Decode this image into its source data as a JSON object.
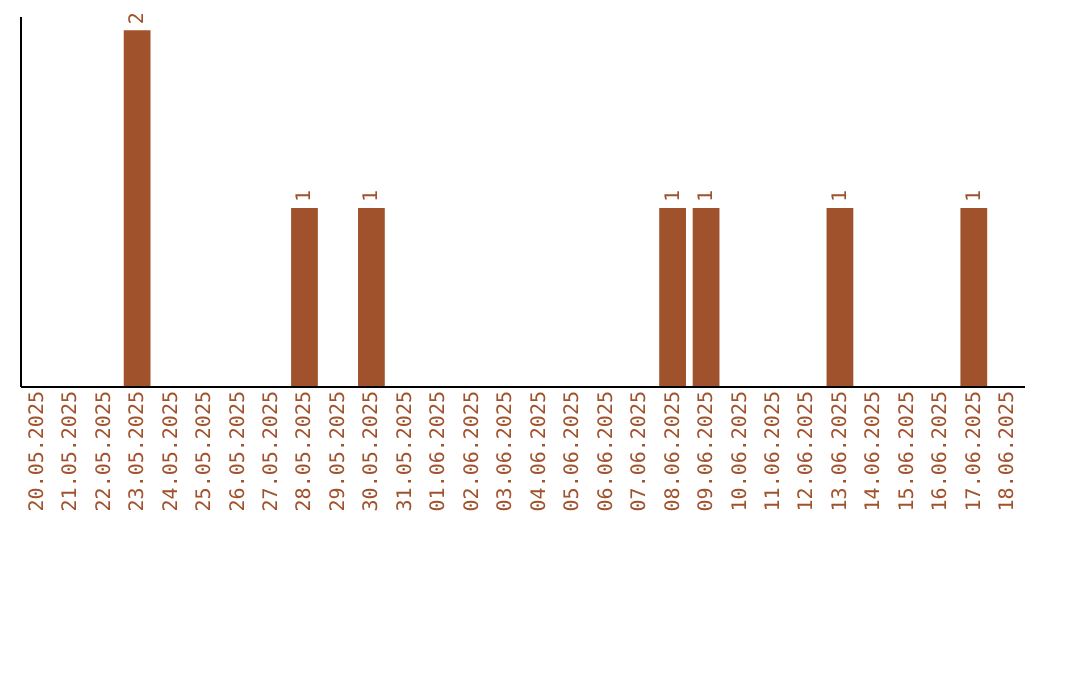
{
  "chart_data": {
    "type": "bar",
    "categories": [
      "20.05.2025",
      "21.05.2025",
      "22.05.2025",
      "23.05.2025",
      "24.05.2025",
      "25.05.2025",
      "26.05.2025",
      "27.05.2025",
      "28.05.2025",
      "29.05.2025",
      "30.05.2025",
      "31.05.2025",
      "01.06.2025",
      "02.06.2025",
      "03.06.2025",
      "04.06.2025",
      "05.06.2025",
      "06.06.2025",
      "07.06.2025",
      "08.06.2025",
      "09.06.2025",
      "10.06.2025",
      "11.06.2025",
      "12.06.2025",
      "13.06.2025",
      "14.06.2025",
      "15.06.2025",
      "16.06.2025",
      "17.06.2025",
      "18.06.2025"
    ],
    "values": [
      0,
      0,
      0,
      2,
      0,
      0,
      0,
      0,
      1,
      0,
      1,
      0,
      0,
      0,
      0,
      0,
      0,
      0,
      0,
      1,
      1,
      0,
      0,
      0,
      1,
      0,
      0,
      0,
      1,
      0
    ],
    "value_labels": [
      null,
      null,
      null,
      "2",
      null,
      null,
      null,
      null,
      "1",
      null,
      "1",
      null,
      null,
      null,
      null,
      null,
      null,
      null,
      null,
      "1",
      "1",
      null,
      null,
      null,
      "1",
      null,
      null,
      null,
      "1",
      null
    ],
    "color": "#a0522d",
    "ylim": [
      0,
      2.08
    ],
    "tick_labels": "x",
    "grid": false
  }
}
